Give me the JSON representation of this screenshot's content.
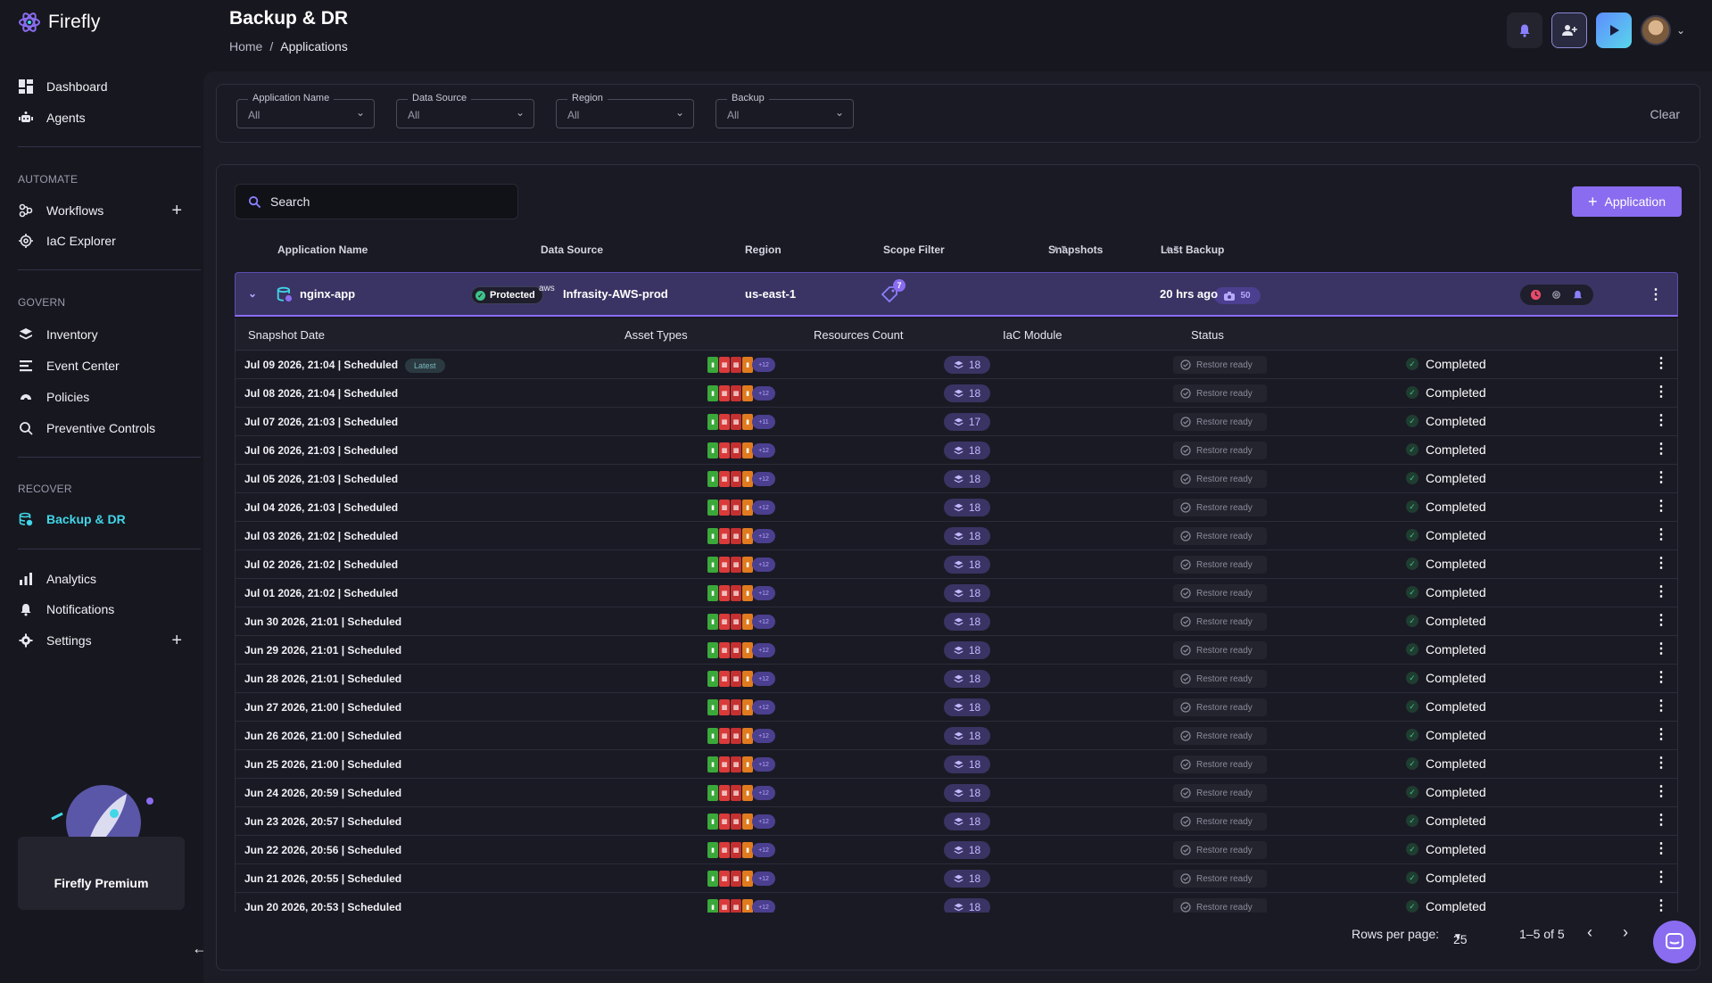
{
  "brand": {
    "name": "Firefly"
  },
  "sidebar": {
    "items_top": [
      {
        "label": "Dashboard",
        "icon": "dashboard-icon"
      },
      {
        "label": "Agents",
        "icon": "agents-icon"
      }
    ],
    "sections": [
      {
        "label": "AUTOMATE",
        "items": [
          {
            "label": "Workflows",
            "icon": "workflows-icon",
            "plus": true
          },
          {
            "label": "IaC Explorer",
            "icon": "iac-explorer-icon"
          }
        ]
      },
      {
        "label": "GOVERN",
        "items": [
          {
            "label": "Inventory",
            "icon": "inventory-icon"
          },
          {
            "label": "Event Center",
            "icon": "event-center-icon"
          },
          {
            "label": "Policies",
            "icon": "policies-icon"
          },
          {
            "label": "Preventive Controls",
            "icon": "preventive-controls-icon"
          }
        ]
      },
      {
        "label": "RECOVER",
        "items": [
          {
            "label": "Backup & DR",
            "icon": "backup-dr-icon",
            "active": true
          }
        ]
      }
    ],
    "items_bottom": [
      {
        "label": "Analytics",
        "icon": "analytics-icon"
      },
      {
        "label": "Notifications",
        "icon": "notifications-icon"
      },
      {
        "label": "Settings",
        "icon": "settings-icon",
        "plus": true
      }
    ],
    "premium_label": "Firefly Premium"
  },
  "header": {
    "title": "Backup & DR",
    "breadcrumb": {
      "home": "Home",
      "separator": "/",
      "current": "Applications"
    }
  },
  "filters": {
    "items": [
      {
        "label": "Application Name",
        "value": "All"
      },
      {
        "label": "Data Source",
        "value": "All"
      },
      {
        "label": "Region",
        "value": "All"
      },
      {
        "label": "Backup",
        "value": "All"
      }
    ],
    "clear_label": "Clear"
  },
  "table": {
    "search_placeholder": "Search",
    "add_button_label": "Application",
    "columns": {
      "app_name": "Application Name",
      "data_source": "Data Source",
      "region": "Region",
      "scope_filter": "Scope Filter",
      "snapshots": "Snapshots",
      "last_backup": "Last Backup"
    },
    "app": {
      "name": "nginx-app",
      "protection": "Protected",
      "data_source": "Infrasity-AWS-prod",
      "data_source_provider": "aws",
      "region": "us-east-1",
      "scope_filter_count": "7",
      "snapshots": "50",
      "last_backup": "20 hrs ago"
    },
    "sub_columns": {
      "snapshot_date": "Snapshot Date",
      "asset_types": "Asset Types",
      "resources_count": "Resources Count",
      "iac_module": "IaC Module",
      "status": "Status"
    },
    "latest_label": "Latest",
    "iac_label": "Restore ready",
    "rows": [
      {
        "date": "Jul 09 2026, 21:04 | Scheduled",
        "count": "18",
        "more": "+12",
        "status": "Completed",
        "latest": true
      },
      {
        "date": "Jul 08 2026, 21:04 | Scheduled",
        "count": "18",
        "more": "+12",
        "status": "Completed"
      },
      {
        "date": "Jul 07 2026, 21:03 | Scheduled",
        "count": "17",
        "more": "+11",
        "status": "Completed"
      },
      {
        "date": "Jul 06 2026, 21:03 | Scheduled",
        "count": "18",
        "more": "+12",
        "status": "Completed"
      },
      {
        "date": "Jul 05 2026, 21:03 | Scheduled",
        "count": "18",
        "more": "+12",
        "status": "Completed"
      },
      {
        "date": "Jul 04 2026, 21:03 | Scheduled",
        "count": "18",
        "more": "+12",
        "status": "Completed"
      },
      {
        "date": "Jul 03 2026, 21:02 | Scheduled",
        "count": "18",
        "more": "+12",
        "status": "Completed"
      },
      {
        "date": "Jul 02 2026, 21:02 | Scheduled",
        "count": "18",
        "more": "+12",
        "status": "Completed"
      },
      {
        "date": "Jul 01 2026, 21:02 | Scheduled",
        "count": "18",
        "more": "+12",
        "status": "Completed"
      },
      {
        "date": "Jun 30 2026, 21:01 | Scheduled",
        "count": "18",
        "more": "+12",
        "status": "Completed"
      },
      {
        "date": "Jun 29 2026, 21:01 | Scheduled",
        "count": "18",
        "more": "+12",
        "status": "Completed"
      },
      {
        "date": "Jun 28 2026, 21:01 | Scheduled",
        "count": "18",
        "more": "+12",
        "status": "Completed"
      },
      {
        "date": "Jun 27 2026, 21:00 | Scheduled",
        "count": "18",
        "more": "+12",
        "status": "Completed"
      },
      {
        "date": "Jun 26 2026, 21:00 | Scheduled",
        "count": "18",
        "more": "+12",
        "status": "Completed"
      },
      {
        "date": "Jun 25 2026, 21:00 | Scheduled",
        "count": "18",
        "more": "+12",
        "status": "Completed"
      },
      {
        "date": "Jun 24 2026, 20:59 | Scheduled",
        "count": "18",
        "more": "+12",
        "status": "Completed"
      },
      {
        "date": "Jun 23 2026, 20:57 | Scheduled",
        "count": "18",
        "more": "+12",
        "status": "Completed"
      },
      {
        "date": "Jun 22 2026, 20:56 | Scheduled",
        "count": "18",
        "more": "+12",
        "status": "Completed"
      },
      {
        "date": "Jun 21 2026, 20:55 | Scheduled",
        "count": "18",
        "more": "+12",
        "status": "Completed"
      },
      {
        "date": "Jun 20 2026, 20:53 | Scheduled",
        "count": "18",
        "more": "+12",
        "status": "Completed"
      }
    ],
    "pagination": {
      "rows_per_page_label": "Rows per page:",
      "rows_per_page": "25",
      "range": "1–5 of 5"
    }
  },
  "colors": {
    "accent": "#8a6cf0",
    "active_nav": "#41d6e8",
    "success": "#3fc38a"
  }
}
